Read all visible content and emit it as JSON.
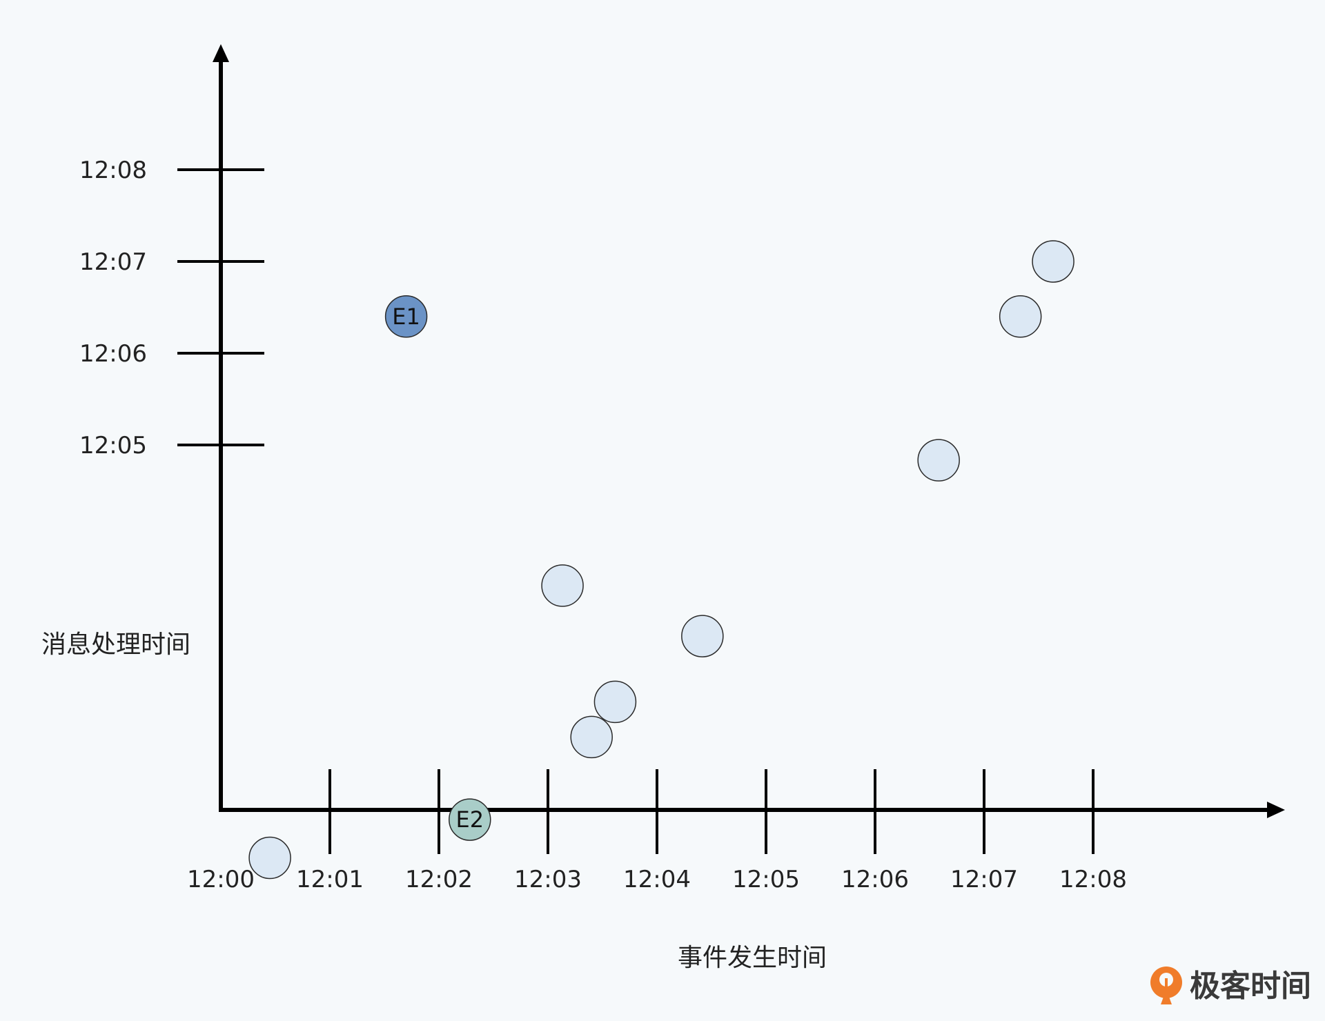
{
  "chart_data": {
    "type": "scatter",
    "xlabel": "事件发生时间",
    "ylabel": "消息处理时间",
    "x_ticks": [
      "12:00",
      "12:01",
      "12:02",
      "12:03",
      "12:04",
      "12:05",
      "12:06",
      "12:07",
      "12:08"
    ],
    "y_ticks": [
      "12:05",
      "12:06",
      "12:07",
      "12:08"
    ],
    "points": [
      {
        "x": "12:00:27",
        "y": "12:00:30",
        "label": "",
        "color": "#dce8f4"
      },
      {
        "x": "12:01:42",
        "y": "12:06:24",
        "label": "E1",
        "color": "#6b93c6"
      },
      {
        "x": "12:02:17",
        "y": "12:00:55",
        "label": "E2",
        "color": "#a9cdc8"
      },
      {
        "x": "12:03:08",
        "y": "12:03:28",
        "label": "",
        "color": "#dce8f4"
      },
      {
        "x": "12:03:24",
        "y": "12:01:49",
        "label": "",
        "color": "#dce8f4"
      },
      {
        "x": "12:03:37",
        "y": "12:02:12",
        "label": "",
        "color": "#dce8f4"
      },
      {
        "x": "12:04:25",
        "y": "12:02:55",
        "label": "",
        "color": "#dce8f4"
      },
      {
        "x": "12:06:35",
        "y": "12:04:50",
        "label": "",
        "color": "#dce8f4"
      },
      {
        "x": "12:07:20",
        "y": "12:06:24",
        "label": "",
        "color": "#dce8f4"
      },
      {
        "x": "12:07:38",
        "y": "12:07:00",
        "label": "",
        "color": "#dce8f4"
      }
    ],
    "grid": false,
    "legend": "none"
  },
  "branding": {
    "logo_text": "极客时间",
    "logo_color": "#f07c2a"
  }
}
